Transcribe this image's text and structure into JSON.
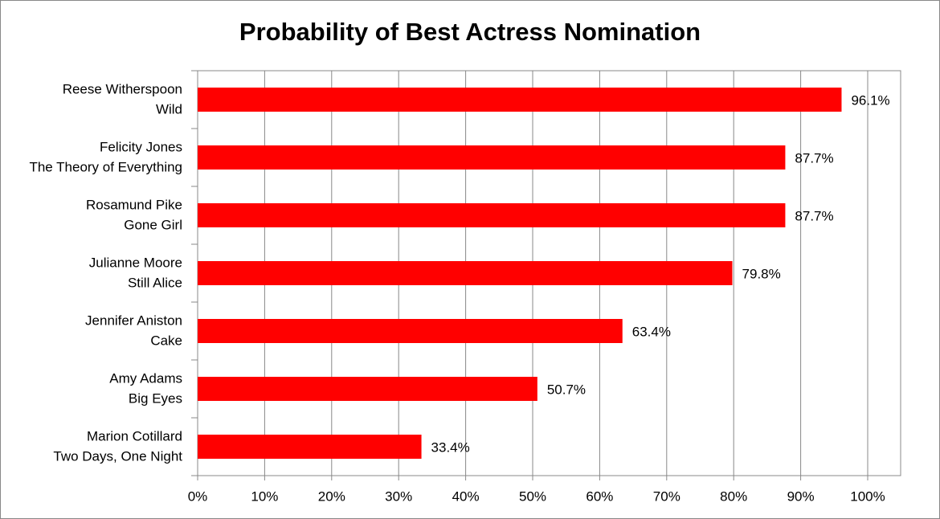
{
  "chart_data": {
    "type": "barh",
    "title": "Probability of Best Actress Nomination",
    "categories": [
      [
        "Reese Witherspoon",
        "Wild"
      ],
      [
        "Felicity Jones",
        "The Theory of Everything"
      ],
      [
        "Rosamund Pike",
        "Gone Girl"
      ],
      [
        "Julianne Moore",
        "Still Alice"
      ],
      [
        "Jennifer Aniston",
        "Cake"
      ],
      [
        "Amy Adams",
        "Big Eyes"
      ],
      [
        "Marion Cotillard",
        "Two Days, One Night"
      ]
    ],
    "values": [
      96.1,
      87.7,
      87.7,
      79.8,
      63.4,
      50.7,
      33.4
    ],
    "value_labels": [
      "96.1%",
      "87.7%",
      "87.7%",
      "79.8%",
      "63.4%",
      "50.7%",
      "33.4%"
    ],
    "color": "#ff0000",
    "xlim": [
      0,
      100
    ],
    "xticks": [
      {
        "value": 0,
        "label": "0%"
      },
      {
        "value": 10,
        "label": "10%"
      },
      {
        "value": 20,
        "label": "20%"
      },
      {
        "value": 30,
        "label": "30%"
      },
      {
        "value": 40,
        "label": "40%"
      },
      {
        "value": 50,
        "label": "50%"
      },
      {
        "value": 60,
        "label": "60%"
      },
      {
        "value": 70,
        "label": "70%"
      },
      {
        "value": 80,
        "label": "80%"
      },
      {
        "value": 90,
        "label": "90%"
      },
      {
        "value": 100,
        "label": "100%"
      }
    ],
    "grid": true
  }
}
